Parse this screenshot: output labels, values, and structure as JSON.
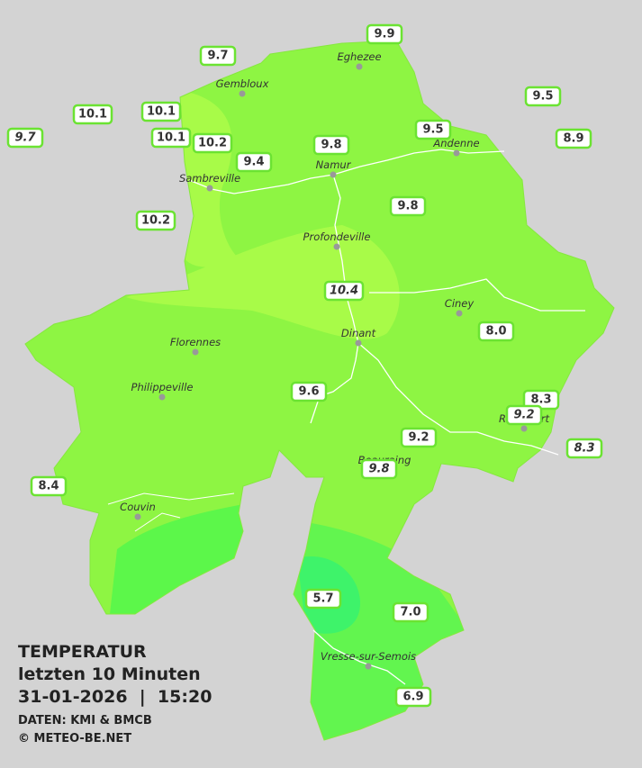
{
  "header": {
    "title": "TEMPERATUR",
    "subtitle": "letzten 10 Minuten",
    "datetime": "31-01-2026  |  15:20",
    "source": "DATEN: KMI & BMCB",
    "copyright": "© METEO-BE.NET"
  },
  "cities": [
    "Eghezee",
    "Gembloux",
    "Andenne",
    "Namur",
    "Sambreville",
    "Profondeville",
    "Ciney",
    "Dinant",
    "Florennes",
    "Philippeville",
    "Beauraing",
    "Rochefort",
    "Couvin",
    "Vresse-sur-Semois"
  ],
  "stations": [
    "9.9",
    "9.7",
    "10.1",
    "10.1",
    "9.7",
    "10.1",
    "10.2",
    "9.4",
    "9.8",
    "9.5",
    "9.5",
    "8.9",
    "9.8",
    "10.2",
    "10.4",
    "8.0",
    "9.6",
    "8.3",
    "9.2",
    "9.2",
    "8.3",
    "9.8",
    "8.4",
    "5.7",
    "7.0",
    "6.9"
  ]
}
